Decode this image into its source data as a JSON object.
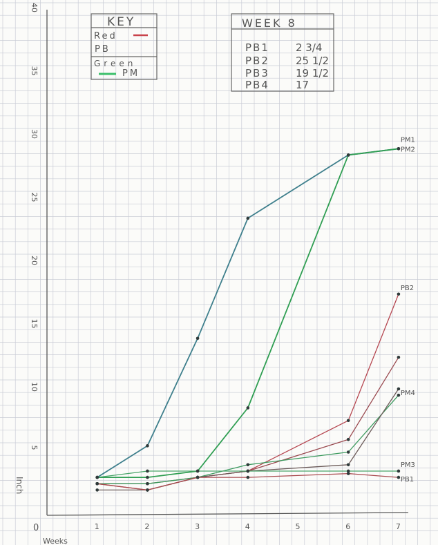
{
  "chart_data": {
    "type": "line",
    "title": "",
    "xlabel": "Weeks",
    "ylabel": "Inch",
    "xlim": [
      0,
      7
    ],
    "ylim": [
      0,
      40
    ],
    "x_ticks": [
      "0",
      "1",
      "2",
      "3",
      "4",
      "5",
      "6",
      "7"
    ],
    "y_ticks": [
      "5",
      "10",
      "15",
      "20",
      "25",
      "30",
      "35",
      "40"
    ],
    "grid": true,
    "series": [
      {
        "name": "PM1",
        "color": "#3e7f8c",
        "x": [
          1,
          2,
          3,
          4,
          6,
          7
        ],
        "y": [
          3,
          5.5,
          14,
          23.5,
          28.5,
          29
        ]
      },
      {
        "name": "PM2",
        "color": "#2f9e52",
        "x": [
          1,
          2,
          3,
          4,
          6,
          7
        ],
        "y": [
          3,
          3,
          3.5,
          8.5,
          28.5,
          29
        ]
      },
      {
        "name": "PB2",
        "color": "#b5454f",
        "x": [
          1,
          2,
          3,
          4,
          6,
          7
        ],
        "y": [
          2.5,
          2,
          3,
          3.5,
          7.5,
          17.5
        ]
      },
      {
        "name": "",
        "color": "#9a4a50",
        "x": [
          1,
          2,
          3,
          4,
          6,
          7
        ],
        "y": [
          2.5,
          2.5,
          3,
          3.5,
          6,
          12.5
        ]
      },
      {
        "name": "PM4",
        "color": "#3c9a5e",
        "x": [
          1,
          2,
          3,
          4,
          6,
          7
        ],
        "y": [
          2.5,
          2.5,
          3,
          4,
          5,
          9.5
        ]
      },
      {
        "name": "",
        "color": "#6b5a58",
        "x": [
          1,
          2,
          3,
          4,
          6,
          7
        ],
        "y": [
          2,
          2,
          3,
          3.5,
          4,
          10
        ]
      },
      {
        "name": "PM3",
        "color": "#4aa56a",
        "x": [
          1,
          2,
          3,
          4,
          6,
          7
        ],
        "y": [
          3,
          3.5,
          3.5,
          3.5,
          3.5,
          3.5
        ]
      },
      {
        "name": "PB1",
        "color": "#a84a4e",
        "x": [
          1,
          2,
          3,
          4,
          6,
          7
        ],
        "y": [
          2.5,
          2,
          3,
          3,
          3.3,
          3
        ]
      }
    ],
    "series_labels": [
      "PM1",
      "PM2",
      "PB2",
      "PM4",
      "PM3",
      "PB1"
    ],
    "legend": {
      "title": "KEY",
      "placement": "top-left",
      "entries": [
        {
          "label": "Red",
          "sublabel": "PB",
          "color": "#c9434b"
        },
        {
          "label": "Green",
          "sublabel": "PM",
          "color": "#3bbf6a"
        }
      ]
    },
    "table": {
      "title": "WEEK 8",
      "placement": "top-center",
      "rows": [
        {
          "name": "PB1",
          "value": "2 3/4"
        },
        {
          "name": "PB2",
          "value": "25 1/2"
        },
        {
          "name": "PB3",
          "value": "19 1/2"
        },
        {
          "name": "PB4",
          "value": "17"
        }
      ]
    }
  }
}
